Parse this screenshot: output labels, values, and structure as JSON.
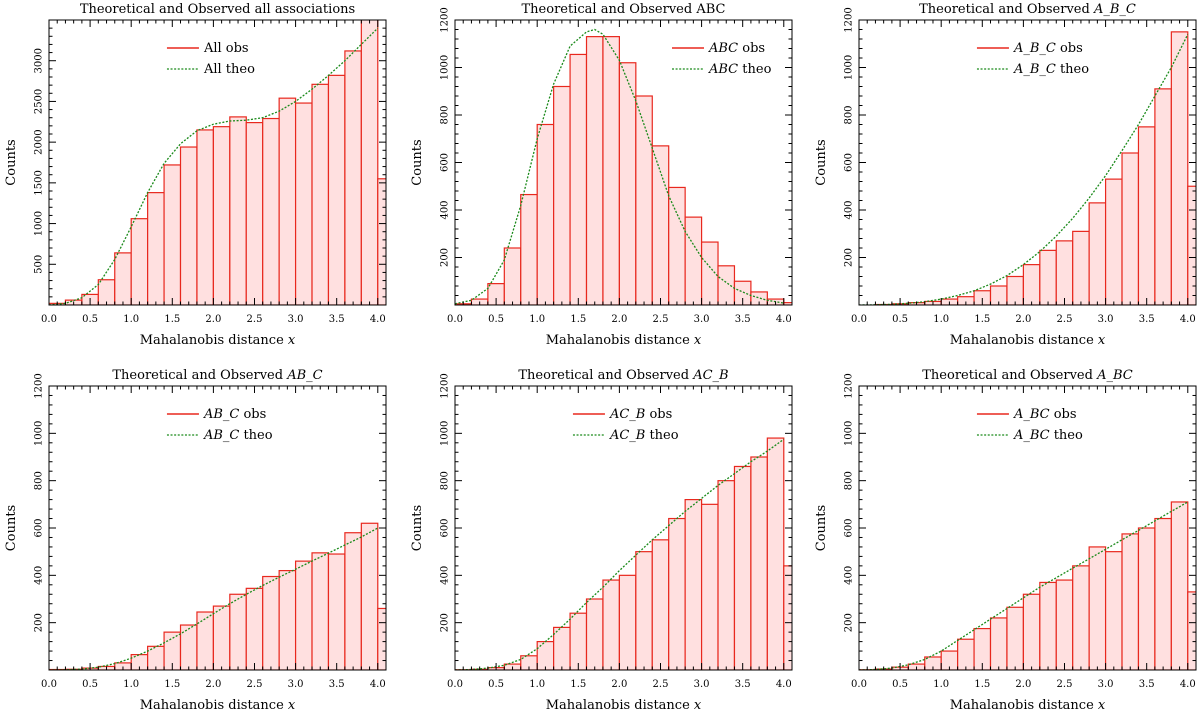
{
  "chart_data": [
    {
      "type": "bar",
      "title": "Theoretical and Observed all associations",
      "title_prefix": "Theoretical and Observed",
      "title_suffix": "all associations",
      "title_suffix_italic": false,
      "xlabel": "Mahalanobis distance",
      "xvar": "x",
      "ylabel": "Counts",
      "xlim": [
        0,
        4.1
      ],
      "ylim": [
        0,
        3500
      ],
      "yticks": [
        500,
        1000,
        1500,
        2000,
        2500,
        3000
      ],
      "xticks": [
        0.0,
        0.5,
        1.0,
        1.5,
        2.0,
        2.5,
        3.0,
        3.5,
        4.0
      ],
      "bin_width": 0.2,
      "bin_left": [
        0.0,
        0.2,
        0.4,
        0.6,
        0.8,
        1.0,
        1.2,
        1.4,
        1.6,
        1.8,
        2.0,
        2.2,
        2.4,
        2.6,
        2.8,
        3.0,
        3.2,
        3.4,
        3.6,
        3.8,
        4.0
      ],
      "observed": [
        20,
        60,
        130,
        310,
        640,
        1060,
        1380,
        1720,
        1940,
        2150,
        2190,
        2310,
        2240,
        2290,
        2540,
        2480,
        2710,
        2820,
        3120,
        3520,
        1550
      ],
      "theo_x": [
        0.0,
        0.2,
        0.4,
        0.6,
        0.8,
        1.0,
        1.2,
        1.4,
        1.6,
        1.8,
        2.0,
        2.2,
        2.4,
        2.6,
        2.8,
        3.0,
        3.2,
        3.4,
        3.6,
        3.8,
        4.0
      ],
      "theoretical": [
        0,
        20,
        90,
        250,
        560,
        960,
        1380,
        1740,
        1980,
        2140,
        2220,
        2260,
        2270,
        2300,
        2380,
        2500,
        2650,
        2820,
        3000,
        3200,
        3400
      ],
      "legend": {
        "obs_prefix": "All",
        "obs_suffix": "obs",
        "theo_prefix": "All",
        "theo_suffix": "theo",
        "italic": false
      },
      "legend_position": "top-center"
    },
    {
      "type": "bar",
      "title": "Theoretical and Observed ABC",
      "title_prefix": "Theoretical and Observed",
      "title_suffix": "ABC",
      "title_suffix_italic": false,
      "xlabel": "Mahalanobis distance",
      "xvar": "x",
      "ylabel": "Counts",
      "xlim": [
        0,
        4.1
      ],
      "ylim": [
        0,
        1200
      ],
      "yticks": [
        200,
        400,
        600,
        800,
        1000,
        1200
      ],
      "xticks": [
        0.0,
        0.5,
        1.0,
        1.5,
        2.0,
        2.5,
        3.0,
        3.5,
        4.0
      ],
      "bin_width": 0.2,
      "bin_left": [
        0.0,
        0.2,
        0.4,
        0.6,
        0.8,
        1.0,
        1.2,
        1.4,
        1.6,
        1.8,
        2.0,
        2.2,
        2.4,
        2.6,
        2.8,
        3.0,
        3.2,
        3.4,
        3.6,
        3.8,
        4.0
      ],
      "observed": [
        5,
        25,
        90,
        240,
        465,
        760,
        920,
        1055,
        1130,
        1130,
        1020,
        880,
        670,
        495,
        370,
        265,
        165,
        100,
        55,
        25,
        10
      ],
      "theo_x": [
        0.0,
        0.2,
        0.4,
        0.6,
        0.8,
        1.0,
        1.2,
        1.4,
        1.6,
        1.7,
        1.8,
        2.0,
        2.2,
        2.4,
        2.6,
        2.8,
        3.0,
        3.2,
        3.4,
        3.6,
        3.8,
        4.0
      ],
      "theoretical": [
        5,
        20,
        70,
        190,
        420,
        700,
        930,
        1090,
        1150,
        1160,
        1140,
        1030,
        860,
        660,
        460,
        310,
        200,
        120,
        70,
        40,
        20,
        8
      ],
      "legend": {
        "obs_prefix": "ABC",
        "obs_suffix": "obs",
        "theo_prefix": "ABC",
        "theo_suffix": "theo",
        "italic": true
      },
      "legend_position": "top-right"
    },
    {
      "type": "bar",
      "title": "Theoretical and Observed A_B_C",
      "title_prefix": "Theoretical and Observed",
      "title_suffix": "A_B_C",
      "title_suffix_italic": true,
      "xlabel": "Mahalanobis distance",
      "xvar": "x",
      "ylabel": "Counts",
      "xlim": [
        0,
        4.1
      ],
      "ylim": [
        0,
        1200
      ],
      "yticks": [
        200,
        400,
        600,
        800,
        1000,
        1200
      ],
      "xticks": [
        0.0,
        0.5,
        1.0,
        1.5,
        2.0,
        2.5,
        3.0,
        3.5,
        4.0
      ],
      "bin_width": 0.2,
      "bin_left": [
        0.0,
        0.2,
        0.4,
        0.6,
        0.8,
        1.0,
        1.2,
        1.4,
        1.6,
        1.8,
        2.0,
        2.2,
        2.4,
        2.6,
        2.8,
        3.0,
        3.2,
        3.4,
        3.6,
        3.8,
        4.0
      ],
      "observed": [
        0,
        2,
        5,
        10,
        15,
        25,
        35,
        60,
        80,
        120,
        170,
        230,
        270,
        310,
        430,
        530,
        640,
        750,
        910,
        1150,
        500
      ],
      "theo_x": [
        0.0,
        0.2,
        0.4,
        0.6,
        0.8,
        1.0,
        1.2,
        1.4,
        1.6,
        1.8,
        2.0,
        2.2,
        2.4,
        2.6,
        2.8,
        3.0,
        3.2,
        3.4,
        3.6,
        3.8,
        4.0
      ],
      "theoretical": [
        0,
        1,
        3,
        7,
        14,
        25,
        40,
        60,
        88,
        124,
        170,
        225,
        290,
        365,
        450,
        545,
        650,
        760,
        880,
        1000,
        1140
      ],
      "legend": {
        "obs_prefix": "A_B_C",
        "obs_suffix": "obs",
        "theo_prefix": "A_B_C",
        "theo_suffix": "theo",
        "italic": true
      },
      "legend_position": "top-center"
    },
    {
      "type": "bar",
      "title": "Theoretical and Observed AB_C",
      "title_prefix": "Theoretical and Observed",
      "title_suffix": "AB_C",
      "title_suffix_italic": true,
      "xlabel": "Mahalanobis distance",
      "xvar": "x",
      "ylabel": "Counts",
      "xlim": [
        0,
        4.1
      ],
      "ylim": [
        0,
        1200
      ],
      "yticks": [
        200,
        400,
        600,
        800,
        1000,
        1200
      ],
      "xticks": [
        0.0,
        0.5,
        1.0,
        1.5,
        2.0,
        2.5,
        3.0,
        3.5,
        4.0
      ],
      "bin_width": 0.2,
      "bin_left": [
        0.0,
        0.2,
        0.4,
        0.6,
        0.8,
        1.0,
        1.2,
        1.4,
        1.6,
        1.8,
        2.0,
        2.2,
        2.4,
        2.6,
        2.8,
        3.0,
        3.2,
        3.4,
        3.6,
        3.8,
        4.0
      ],
      "observed": [
        2,
        3,
        8,
        15,
        30,
        65,
        100,
        160,
        190,
        245,
        270,
        320,
        345,
        395,
        420,
        460,
        495,
        490,
        580,
        620,
        260
      ],
      "theo_x": [
        0.0,
        0.2,
        0.4,
        0.6,
        0.8,
        1.0,
        1.2,
        1.4,
        1.6,
        1.8,
        2.0,
        2.2,
        2.4,
        2.6,
        2.8,
        3.0,
        3.2,
        3.4,
        3.6,
        3.8,
        4.0
      ],
      "theoretical": [
        0,
        1,
        4,
        12,
        27,
        50,
        80,
        115,
        153,
        195,
        238,
        280,
        320,
        357,
        392,
        426,
        460,
        494,
        528,
        562,
        600
      ],
      "legend": {
        "obs_prefix": "AB_C",
        "obs_suffix": "obs",
        "theo_prefix": "AB_C",
        "theo_suffix": "theo",
        "italic": true
      },
      "legend_position": "top-center"
    },
    {
      "type": "bar",
      "title": "Theoretical and Observed AC_B",
      "title_prefix": "Theoretical and Observed",
      "title_suffix": "AC_B",
      "title_suffix_italic": true,
      "xlabel": "Mahalanobis distance",
      "xvar": "x",
      "ylabel": "Counts",
      "xlim": [
        0,
        4.1
      ],
      "ylim": [
        0,
        1200
      ],
      "yticks": [
        200,
        400,
        600,
        800,
        1000,
        1200
      ],
      "xticks": [
        0.0,
        0.5,
        1.0,
        1.5,
        2.0,
        2.5,
        3.0,
        3.5,
        4.0
      ],
      "bin_width": 0.2,
      "bin_left": [
        0.0,
        0.2,
        0.4,
        0.6,
        0.8,
        1.0,
        1.2,
        1.4,
        1.6,
        1.8,
        2.0,
        2.2,
        2.4,
        2.6,
        2.8,
        3.0,
        3.2,
        3.4,
        3.6,
        3.8,
        4.0
      ],
      "observed": [
        1,
        3,
        10,
        25,
        60,
        120,
        180,
        240,
        300,
        380,
        400,
        500,
        550,
        640,
        720,
        700,
        800,
        860,
        900,
        980,
        440
      ],
      "theo_x": [
        0.0,
        0.2,
        0.4,
        0.6,
        0.8,
        1.0,
        1.2,
        1.4,
        1.6,
        1.8,
        2.0,
        2.2,
        2.4,
        2.6,
        2.8,
        3.0,
        3.2,
        3.4,
        3.6,
        3.8,
        4.0
      ],
      "theoretical": [
        0,
        2,
        8,
        20,
        45,
        90,
        150,
        215,
        285,
        350,
        420,
        485,
        550,
        610,
        670,
        725,
        780,
        830,
        880,
        925,
        975
      ],
      "legend": {
        "obs_prefix": "AC_B",
        "obs_suffix": "obs",
        "theo_prefix": "AC_B",
        "theo_suffix": "theo",
        "italic": true
      },
      "legend_position": "top-center"
    },
    {
      "type": "bar",
      "title": "Theoretical and Observed A_BC",
      "title_prefix": "Theoretical and Observed",
      "title_suffix": "A_BC",
      "title_suffix_italic": true,
      "xlabel": "Mahalanobis distance",
      "xvar": "x",
      "ylabel": "Counts",
      "xlim": [
        0,
        4.1
      ],
      "ylim": [
        0,
        1200
      ],
      "yticks": [
        200,
        400,
        600,
        800,
        1000,
        1200
      ],
      "xticks": [
        0.0,
        0.5,
        1.0,
        1.5,
        2.0,
        2.5,
        3.0,
        3.5,
        4.0
      ],
      "bin_width": 0.2,
      "bin_left": [
        0.0,
        0.2,
        0.4,
        0.6,
        0.8,
        1.0,
        1.2,
        1.4,
        1.6,
        1.8,
        2.0,
        2.2,
        2.4,
        2.6,
        2.8,
        3.0,
        3.2,
        3.4,
        3.6,
        3.8,
        4.0
      ],
      "observed": [
        1,
        4,
        12,
        25,
        55,
        80,
        130,
        175,
        220,
        265,
        320,
        370,
        380,
        440,
        520,
        500,
        575,
        600,
        640,
        710,
        330
      ],
      "theo_x": [
        0.0,
        0.2,
        0.4,
        0.6,
        0.8,
        1.0,
        1.2,
        1.4,
        1.6,
        1.8,
        2.0,
        2.2,
        2.4,
        2.6,
        2.8,
        3.0,
        3.2,
        3.4,
        3.6,
        3.8,
        4.0
      ],
      "theoretical": [
        0,
        2,
        8,
        22,
        45,
        80,
        125,
        170,
        215,
        260,
        305,
        350,
        390,
        430,
        470,
        510,
        550,
        590,
        630,
        670,
        710
      ],
      "legend": {
        "obs_prefix": "A_BC",
        "obs_suffix": "obs",
        "theo_prefix": "A_BC",
        "theo_suffix": "theo",
        "italic": true
      },
      "legend_position": "top-center"
    }
  ],
  "colors": {
    "bar_fill": "#ffe0e0",
    "bar_edge": "#e8281e",
    "theo_line": "#1a8a1a",
    "axis": "#000000"
  }
}
